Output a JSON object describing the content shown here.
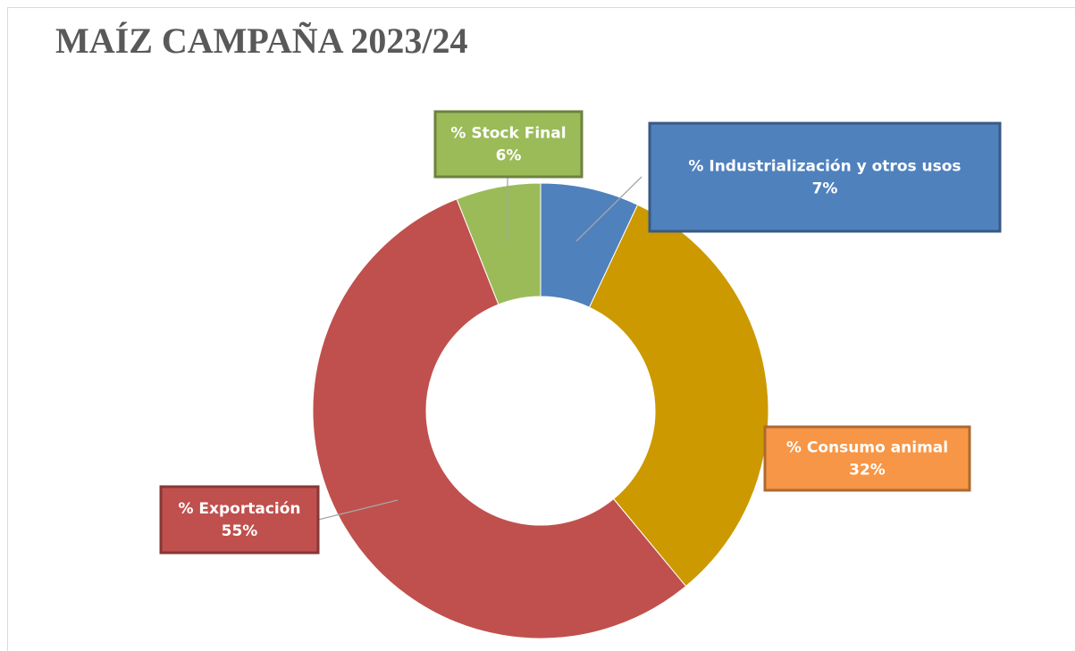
{
  "chart_data": {
    "type": "donut",
    "title": "MAÍZ CAMPAÑA 2023/24",
    "categories": [
      "% Industrialización y otros usos",
      "% Consumo animal",
      "% Exportación",
      "% Stock Final"
    ],
    "values": [
      7,
      32,
      55,
      6
    ],
    "value_labels": [
      "7%",
      "32%",
      "55%",
      "6%"
    ],
    "colors": [
      "#4f81bd",
      "#cc9900",
      "#c0504d",
      "#9bbb59"
    ],
    "label_colors": [
      "#4f81bd",
      "#f79646",
      "#c0504d",
      "#9bbb59"
    ]
  }
}
